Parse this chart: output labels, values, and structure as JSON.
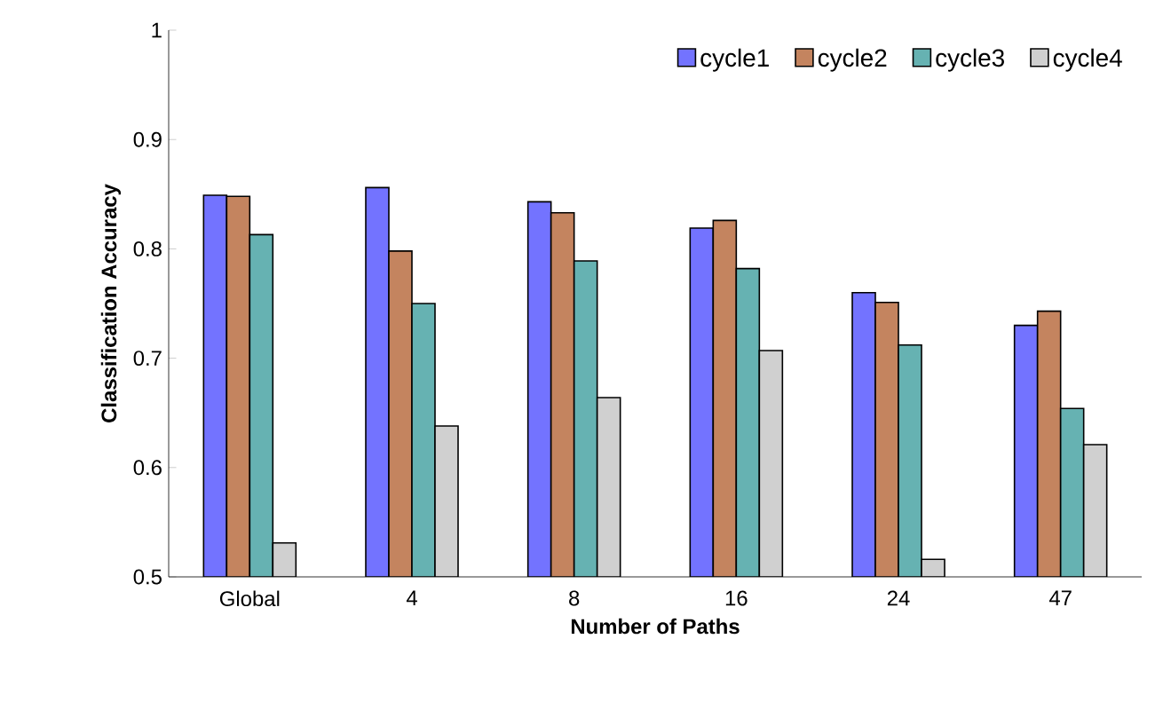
{
  "chart_data": {
    "type": "bar",
    "xlabel": "Number of Paths",
    "ylabel": "Classification Accuracy",
    "categories": [
      "Global",
      "4",
      "8",
      "16",
      "24",
      "47"
    ],
    "series": [
      {
        "name": "cycle1",
        "color": "#7373ff",
        "values": [
          0.849,
          0.856,
          0.843,
          0.819,
          0.76,
          0.73
        ]
      },
      {
        "name": "cycle2",
        "color": "#c4845f",
        "values": [
          0.848,
          0.798,
          0.833,
          0.826,
          0.751,
          0.743
        ]
      },
      {
        "name": "cycle3",
        "color": "#66b2b2",
        "values": [
          0.813,
          0.75,
          0.789,
          0.782,
          0.712,
          0.654
        ]
      },
      {
        "name": "cycle4",
        "color": "#d0d0d0",
        "values": [
          0.531,
          0.638,
          0.664,
          0.707,
          0.516,
          0.621
        ]
      }
    ],
    "ylim": [
      0.5,
      1
    ],
    "yticks": [
      0.5,
      0.6,
      0.7,
      0.8,
      0.9,
      1
    ],
    "grid": false,
    "legend": "top right"
  }
}
